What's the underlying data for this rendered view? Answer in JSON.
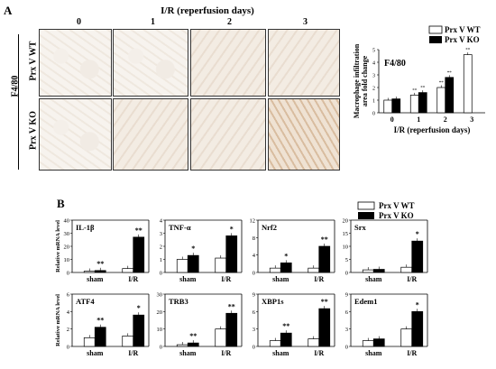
{
  "panelA": {
    "letter": "A",
    "header": "I/R (reperfusion days)",
    "days": [
      "0",
      "1",
      "2",
      "3"
    ],
    "stain_label": "F4/80",
    "row_labels": [
      "Prx V WT",
      "Prx V KO"
    ],
    "chart_title": "F4/80",
    "legend": [
      "Prx V WT",
      "Prx V KO"
    ]
  },
  "panelB": {
    "letter": "B",
    "legend": [
      "Prx V WT",
      "Prx V KO"
    ],
    "ylabel": "Relative mRNA level",
    "groups": [
      "sham",
      "I/R"
    ]
  },
  "chart_data": [
    {
      "type": "bar",
      "title": "F4/80",
      "xlabel": "I/R (reperfusion days)",
      "ylabel": "Macrophage infiltration area fold change",
      "categories": [
        "0",
        "1",
        "2",
        "3"
      ],
      "series": [
        {
          "name": "Prx V WT",
          "values": [
            1.0,
            1.4,
            2.0,
            4.6
          ]
        },
        {
          "name": "Prx V KO",
          "values": [
            1.1,
            1.6,
            2.8,
            0
          ]
        }
      ],
      "ylim": [
        0,
        5
      ],
      "yticks": [
        "0",
        "1",
        "2",
        "3",
        "4",
        "5"
      ],
      "marks": [
        "",
        "**",
        "**",
        "**"
      ]
    },
    {
      "type": "bar",
      "title": "IL-1β",
      "categories": [
        "sham",
        "I/R"
      ],
      "series": [
        {
          "name": "Prx V WT",
          "values": [
            1,
            3
          ]
        },
        {
          "name": "Prx V KO",
          "values": [
            1.5,
            27
          ]
        }
      ],
      "ylim": [
        0,
        40
      ],
      "yticks": [
        "0",
        "10",
        "20",
        "30",
        "40"
      ],
      "marks": [
        "**",
        "**"
      ]
    },
    {
      "type": "bar",
      "title": "TNF-α",
      "categories": [
        "sham",
        "I/R"
      ],
      "series": [
        {
          "name": "Prx V WT",
          "values": [
            1,
            1.1
          ]
        },
        {
          "name": "Prx V KO",
          "values": [
            1.3,
            2.8
          ]
        }
      ],
      "ylim": [
        0,
        4
      ],
      "yticks": [
        "0",
        "1",
        "2",
        "3",
        "4"
      ],
      "marks": [
        "*",
        "*"
      ]
    },
    {
      "type": "bar",
      "title": "Nrf2",
      "categories": [
        "sham",
        "I/R"
      ],
      "series": [
        {
          "name": "Prx V WT",
          "values": [
            1,
            1
          ]
        },
        {
          "name": "Prx V KO",
          "values": [
            2.2,
            6
          ]
        }
      ],
      "ylim": [
        0,
        12
      ],
      "yticks": [
        "0",
        "4",
        "8",
        "12"
      ],
      "marks": [
        "*",
        "**"
      ]
    },
    {
      "type": "bar",
      "title": "Srx",
      "categories": [
        "sham",
        "I/R"
      ],
      "series": [
        {
          "name": "Prx V WT",
          "values": [
            1,
            2
          ]
        },
        {
          "name": "Prx V KO",
          "values": [
            1.2,
            12
          ]
        }
      ],
      "ylim": [
        0,
        20
      ],
      "yticks": [
        "0",
        "5",
        "10",
        "15",
        "20"
      ],
      "marks": [
        "",
        "*"
      ]
    },
    {
      "type": "bar",
      "title": "ATF4",
      "categories": [
        "sham",
        "I/R"
      ],
      "series": [
        {
          "name": "Prx V WT",
          "values": [
            1,
            1.2
          ]
        },
        {
          "name": "Prx V KO",
          "values": [
            2.2,
            3.6
          ]
        }
      ],
      "ylim": [
        0,
        6
      ],
      "yticks": [
        "0",
        "2",
        "4",
        "6"
      ],
      "marks": [
        "**",
        "*"
      ]
    },
    {
      "type": "bar",
      "title": "TRB3",
      "categories": [
        "sham",
        "I/R"
      ],
      "series": [
        {
          "name": "Prx V WT",
          "values": [
            1,
            10
          ]
        },
        {
          "name": "Prx V KO",
          "values": [
            2,
            19
          ]
        }
      ],
      "ylim": [
        0,
        30
      ],
      "yticks": [
        "0",
        "10",
        "20",
        "30"
      ],
      "marks": [
        "**",
        "**"
      ]
    },
    {
      "type": "bar",
      "title": "XBP1s",
      "categories": [
        "sham",
        "I/R"
      ],
      "series": [
        {
          "name": "Prx V WT",
          "values": [
            1,
            1.3
          ]
        },
        {
          "name": "Prx V KO",
          "values": [
            2.3,
            6.5
          ]
        }
      ],
      "ylim": [
        0,
        9
      ],
      "yticks": [
        "0",
        "3",
        "6",
        "9"
      ],
      "marks": [
        "**",
        "**"
      ]
    },
    {
      "type": "bar",
      "title": "Edem1",
      "categories": [
        "sham",
        "I/R"
      ],
      "series": [
        {
          "name": "Prx V WT",
          "values": [
            1,
            3
          ]
        },
        {
          "name": "Prx V KO",
          "values": [
            1.3,
            6
          ]
        }
      ],
      "ylim": [
        0,
        9
      ],
      "yticks": [
        "0",
        "3",
        "6",
        "9"
      ],
      "marks": [
        "",
        "*"
      ]
    }
  ]
}
